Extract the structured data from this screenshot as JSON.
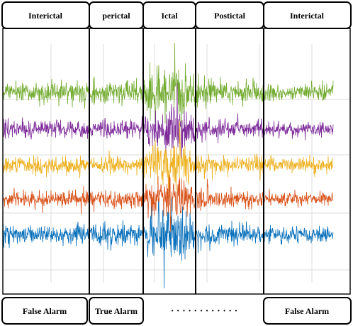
{
  "phases": [
    {
      "key": "interictal-1",
      "label": "Interictal"
    },
    {
      "key": "perictal",
      "label": "perictal"
    },
    {
      "key": "ictal",
      "label": "Ictal"
    },
    {
      "key": "postictal",
      "label": "Postictal"
    },
    {
      "key": "interictal-2",
      "label": "Interictal"
    }
  ],
  "outcomes": [
    {
      "key": "false-alarm-1",
      "label": "False Alarm"
    },
    {
      "key": "true-alarm",
      "label": "True Alarm"
    },
    {
      "key": "ellipsis",
      "label": "· · · · · · · · · · · ·"
    },
    {
      "key": "false-alarm-2",
      "label": "False Alarm"
    }
  ],
  "channels": [
    {
      "name": "",
      "color": "#74AC32"
    },
    {
      "name": "",
      "color": "#7E2C9A"
    },
    {
      "name": "",
      "color": "#EDB01E"
    },
    {
      "name": "",
      "color": "#D9531B"
    },
    {
      "name": "",
      "color": "#0A71BB"
    }
  ],
  "colors": {
    "frame": "#000000",
    "grid": "#dcdcdc"
  }
}
